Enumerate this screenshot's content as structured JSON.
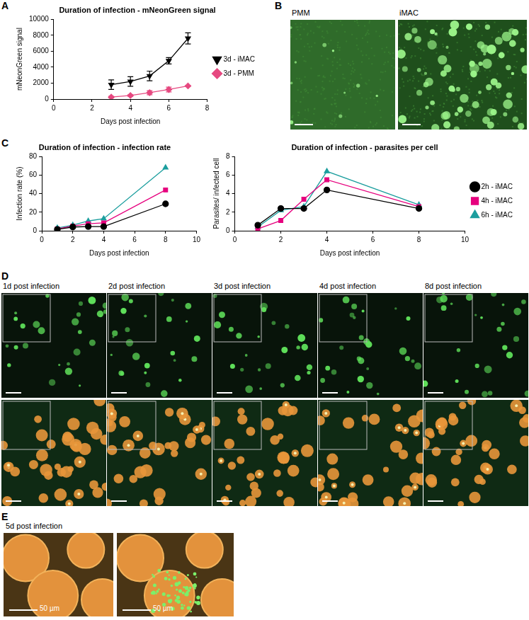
{
  "chart_data": [
    {
      "type": "line",
      "panel": "A",
      "title": "Duration of infection - mNeonGreen signal",
      "x_label": "Days post infection",
      "y_label": "mNeonGreen signal",
      "x": [
        3,
        4,
        5,
        6,
        7
      ],
      "xlim": [
        0,
        8
      ],
      "xticks": [
        0,
        2,
        4,
        6,
        8
      ],
      "ylim": [
        0,
        10000
      ],
      "yticks": [
        0,
        2000,
        4000,
        6000,
        8000,
        10000
      ],
      "grid": false,
      "legend": "right",
      "series": [
        {
          "name": "3d - iMAC",
          "color": "#000000",
          "marker": "triangle-down",
          "values": [
            1800,
            2200,
            2900,
            4800,
            7600
          ],
          "errors": [
            600,
            600,
            600,
            400,
            700
          ]
        },
        {
          "name": "3d - PMM",
          "color": "#e64980",
          "marker": "diamond",
          "values": [
            250,
            450,
            800,
            1200,
            1650
          ],
          "errors": [
            100,
            100,
            250,
            300,
            50
          ]
        }
      ]
    },
    {
      "type": "line",
      "panel": "C",
      "title": "Duration of infection - infection rate",
      "x_label": "Days post infection",
      "y_label": "Infection rate (%)",
      "x": [
        1,
        2,
        3,
        4,
        8
      ],
      "xlim": [
        0,
        10
      ],
      "xticks": [
        0,
        2,
        4,
        6,
        8,
        10
      ],
      "ylim": [
        0,
        80
      ],
      "yticks": [
        0,
        20,
        40,
        60,
        80
      ],
      "grid": false,
      "series": [
        {
          "name": "2h - iMAC",
          "color": "#000000",
          "marker": "circle",
          "values": [
            1.5,
            4,
            4.5,
            4.5,
            29
          ]
        },
        {
          "name": "4h - iMAC",
          "color": "#e6007e",
          "marker": "square",
          "values": [
            2,
            5,
            7.5,
            8.5,
            44
          ]
        },
        {
          "name": "6h - iMAC",
          "color": "#1b9e9e",
          "marker": "triangle",
          "values": [
            3,
            6,
            10.5,
            13,
            68
          ]
        }
      ]
    },
    {
      "type": "line",
      "title": "Duration of infection - parasites per cell",
      "x_label": "Days post infection",
      "y_label": "Parasites/ infected cell",
      "x": [
        1,
        2,
        3,
        4,
        8
      ],
      "xlim": [
        0,
        10
      ],
      "xticks": [
        0,
        2,
        4,
        6,
        8,
        10
      ],
      "ylim": [
        0,
        8
      ],
      "yticks": [
        0,
        2,
        4,
        6,
        8
      ],
      "grid": false,
      "legend": "right",
      "series": [
        {
          "name": "2h - iMAC",
          "color": "#000000",
          "marker": "circle",
          "values": [
            0.6,
            2.4,
            2.4,
            4.4,
            2.4
          ]
        },
        {
          "name": "4h - iMAC",
          "color": "#e6007e",
          "marker": "square",
          "values": [
            0.2,
            1.1,
            3.4,
            5.5,
            2.6
          ]
        },
        {
          "name": "6h - iMAC",
          "color": "#1b9e9e",
          "marker": "triangle",
          "values": [
            0.4,
            2.2,
            2.6,
            6.4,
            2.8
          ]
        }
      ]
    }
  ],
  "images": {
    "B": {
      "panel": "B",
      "labels": [
        "PMM",
        "iMAC"
      ]
    },
    "D": {
      "panel": "D",
      "labels": [
        "1d post infection",
        "2d post infection",
        "3d post infection",
        "4d post infection",
        "8d post infection"
      ]
    },
    "E": {
      "panel": "E",
      "title": "5d post infection",
      "scale_bars": [
        "50 µm",
        "50 µm"
      ]
    }
  }
}
